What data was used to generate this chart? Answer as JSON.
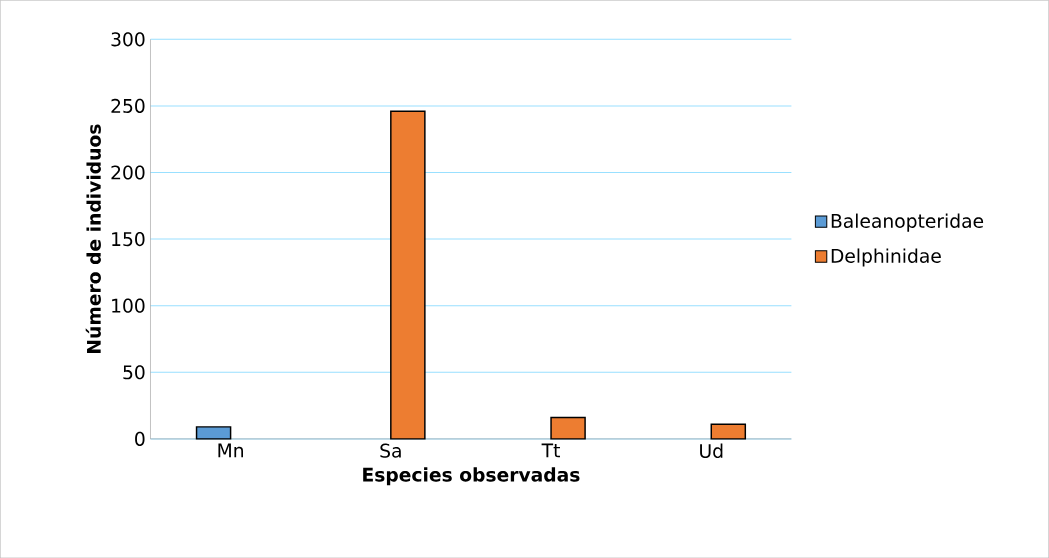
{
  "chart_data": {
    "type": "bar",
    "xlabel": "Especies observadas",
    "ylabel": "Número de individuos",
    "categories": [
      "Mn",
      "Sa",
      "Tt",
      "Ud"
    ],
    "series": [
      {
        "name": "Baleanopteridae",
        "color": "#5b9bd5",
        "values": [
          9,
          null,
          null,
          null
        ]
      },
      {
        "name": "Delphinidae",
        "color": "#ed7d31",
        "values": [
          null,
          246,
          16,
          11
        ]
      }
    ],
    "ylim": [
      0,
      300
    ],
    "yticks": [
      0,
      50,
      100,
      150,
      200,
      250,
      300
    ],
    "grid": "y",
    "legend": "right"
  }
}
